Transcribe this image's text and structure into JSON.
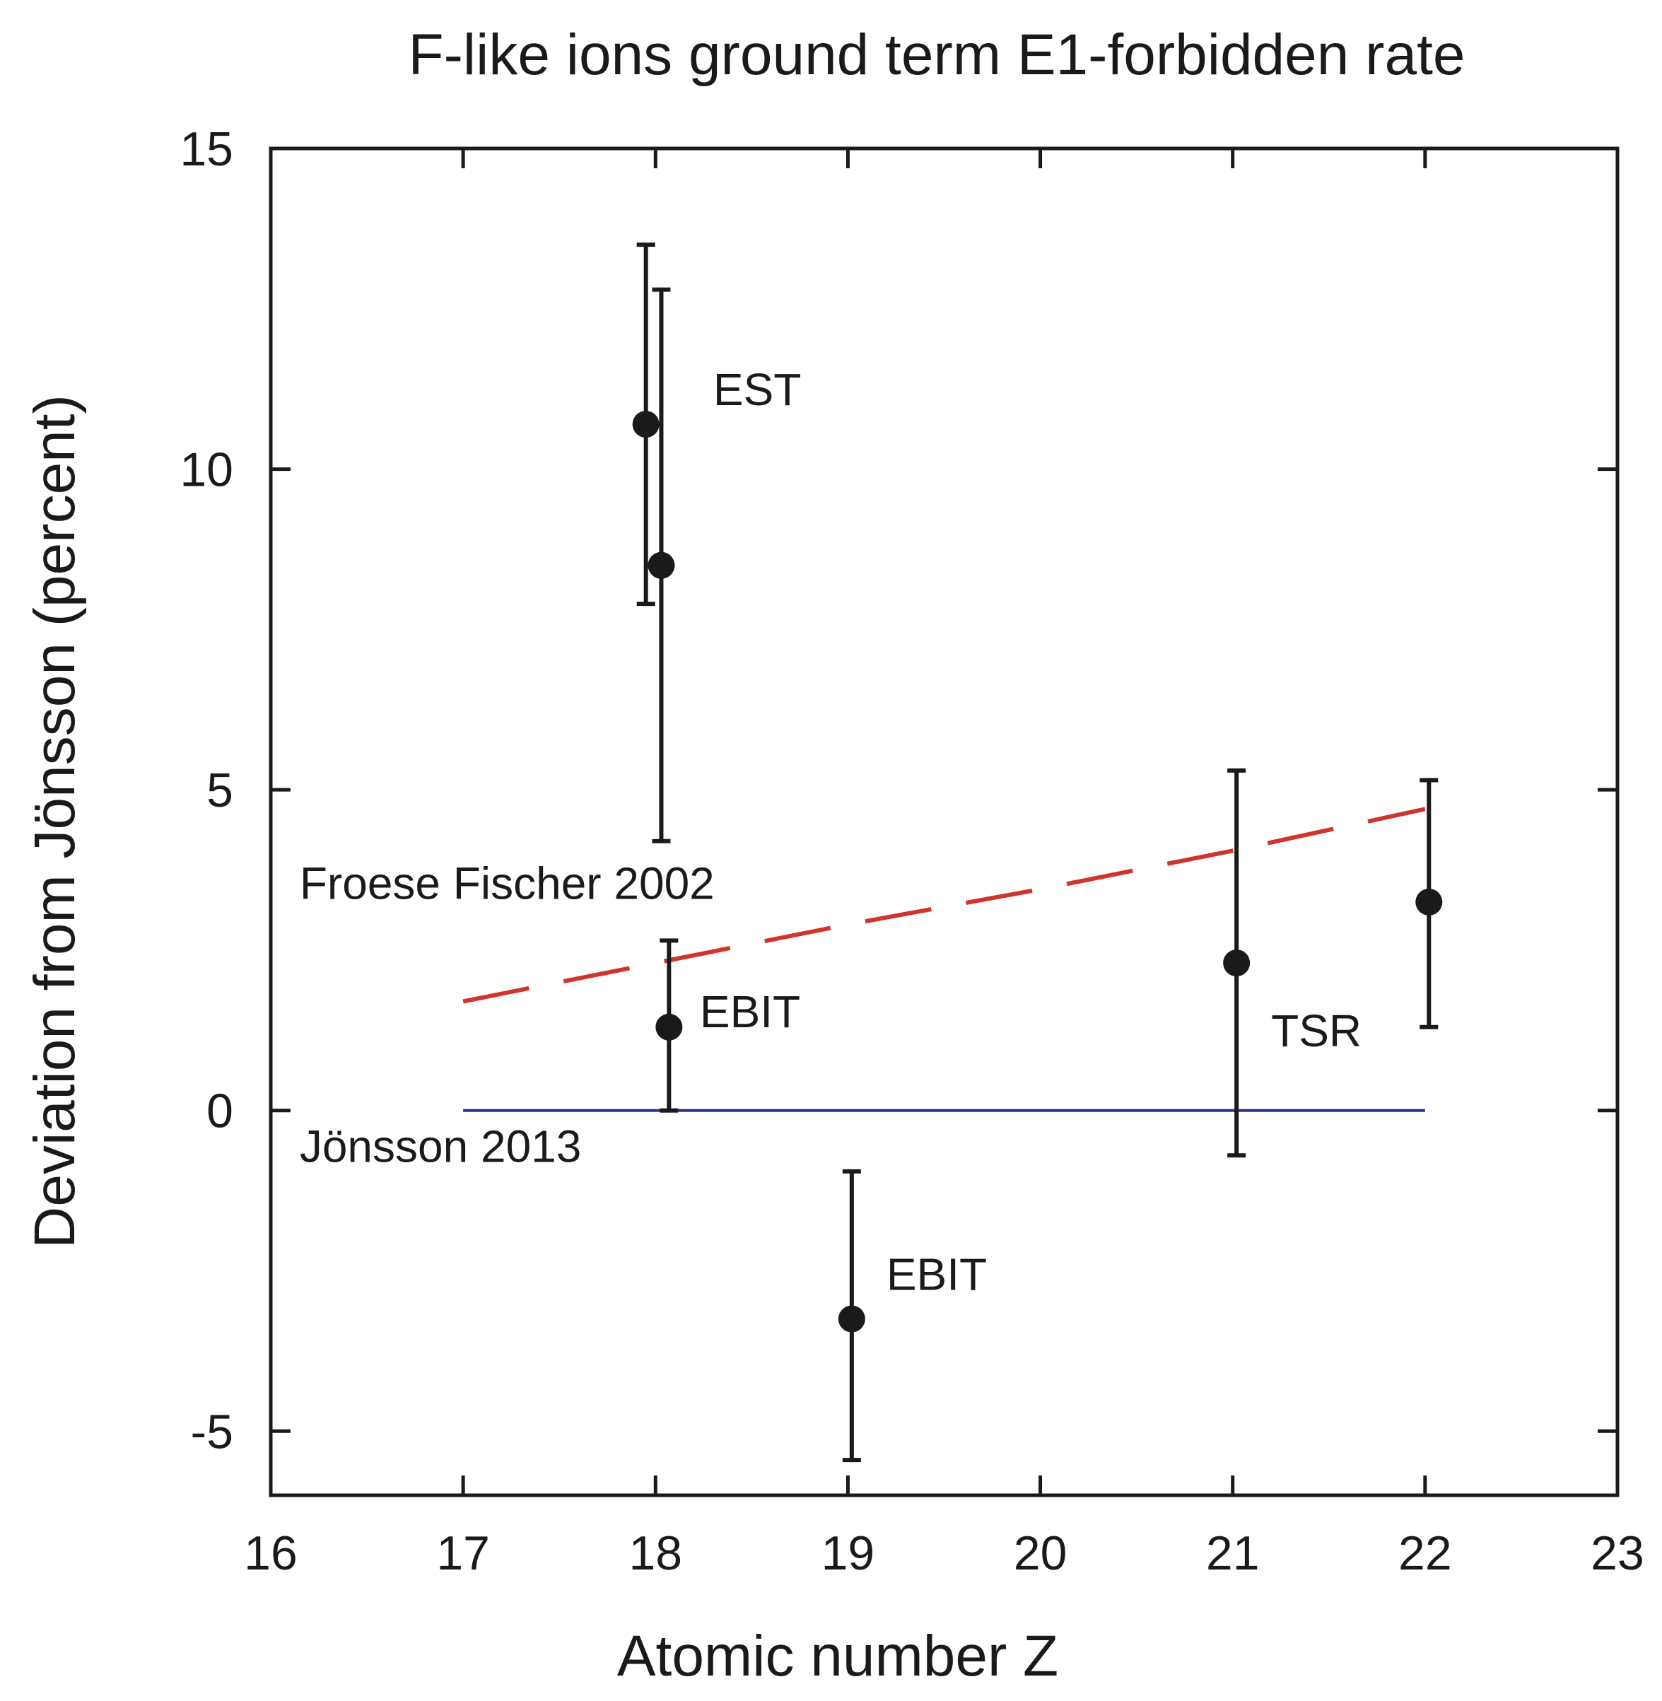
{
  "chart_data": {
    "type": "scatter",
    "title": "F-like ions ground term E1-forbidden rate",
    "xlabel": "Atomic number Z",
    "ylabel": "Deviation from Jönsson (percent)",
    "xlim": [
      16,
      23
    ],
    "ylim": [
      -6,
      15
    ],
    "xticks": [
      16,
      17,
      18,
      19,
      20,
      21,
      22,
      23
    ],
    "yticks": [
      -5,
      0,
      5,
      10,
      15
    ],
    "xtick_labels": [
      "16",
      "17",
      "18",
      "19",
      "20",
      "21",
      "22",
      "23"
    ],
    "ytick_labels": [
      "-5",
      "0",
      "5",
      "10",
      "15"
    ],
    "grid": false,
    "colors": {
      "points": "#1a1a1a",
      "froese": "#d0342c",
      "jonsson": "#2e3192",
      "axes": "#1a1a1a"
    },
    "points": [
      {
        "x": 17.95,
        "y": 10.7,
        "low": 7.9,
        "high": 13.5
      },
      {
        "x": 18.03,
        "y": 8.5,
        "low": 4.2,
        "high": 12.8
      },
      {
        "x": 18.07,
        "y": 1.3,
        "low": 0.0,
        "high": 2.65
      },
      {
        "x": 19.02,
        "y": -3.25,
        "low": -5.45,
        "high": -0.95
      },
      {
        "x": 21.02,
        "y": 2.3,
        "low": -0.7,
        "high": 5.3
      },
      {
        "x": 22.02,
        "y": 3.25,
        "low": 1.3,
        "high": 5.15
      }
    ],
    "series": [
      {
        "name": "Froese Fischer 2002",
        "style": "dashed",
        "x": [
          17,
          18,
          19,
          20,
          21,
          22
        ],
        "values": [
          1.7,
          2.3,
          2.9,
          3.45,
          4.05,
          4.7
        ]
      },
      {
        "name": "Jönsson 2013",
        "style": "solid",
        "x": [
          17,
          22
        ],
        "values": [
          0,
          0
        ]
      }
    ],
    "annotations": [
      {
        "text": "EST",
        "x": 18.3,
        "y": 11.0
      },
      {
        "text": "EBIT",
        "x": 18.23,
        "y": 1.3
      },
      {
        "text": "EBIT",
        "x": 19.2,
        "y": -2.8
      },
      {
        "text": "TSR",
        "x": 21.2,
        "y": 1.0
      },
      {
        "text": "Froese Fischer 2002",
        "x": 16.15,
        "y": 3.3
      },
      {
        "text": "Jönsson 2013",
        "x": 16.15,
        "y": -0.8
      }
    ]
  }
}
